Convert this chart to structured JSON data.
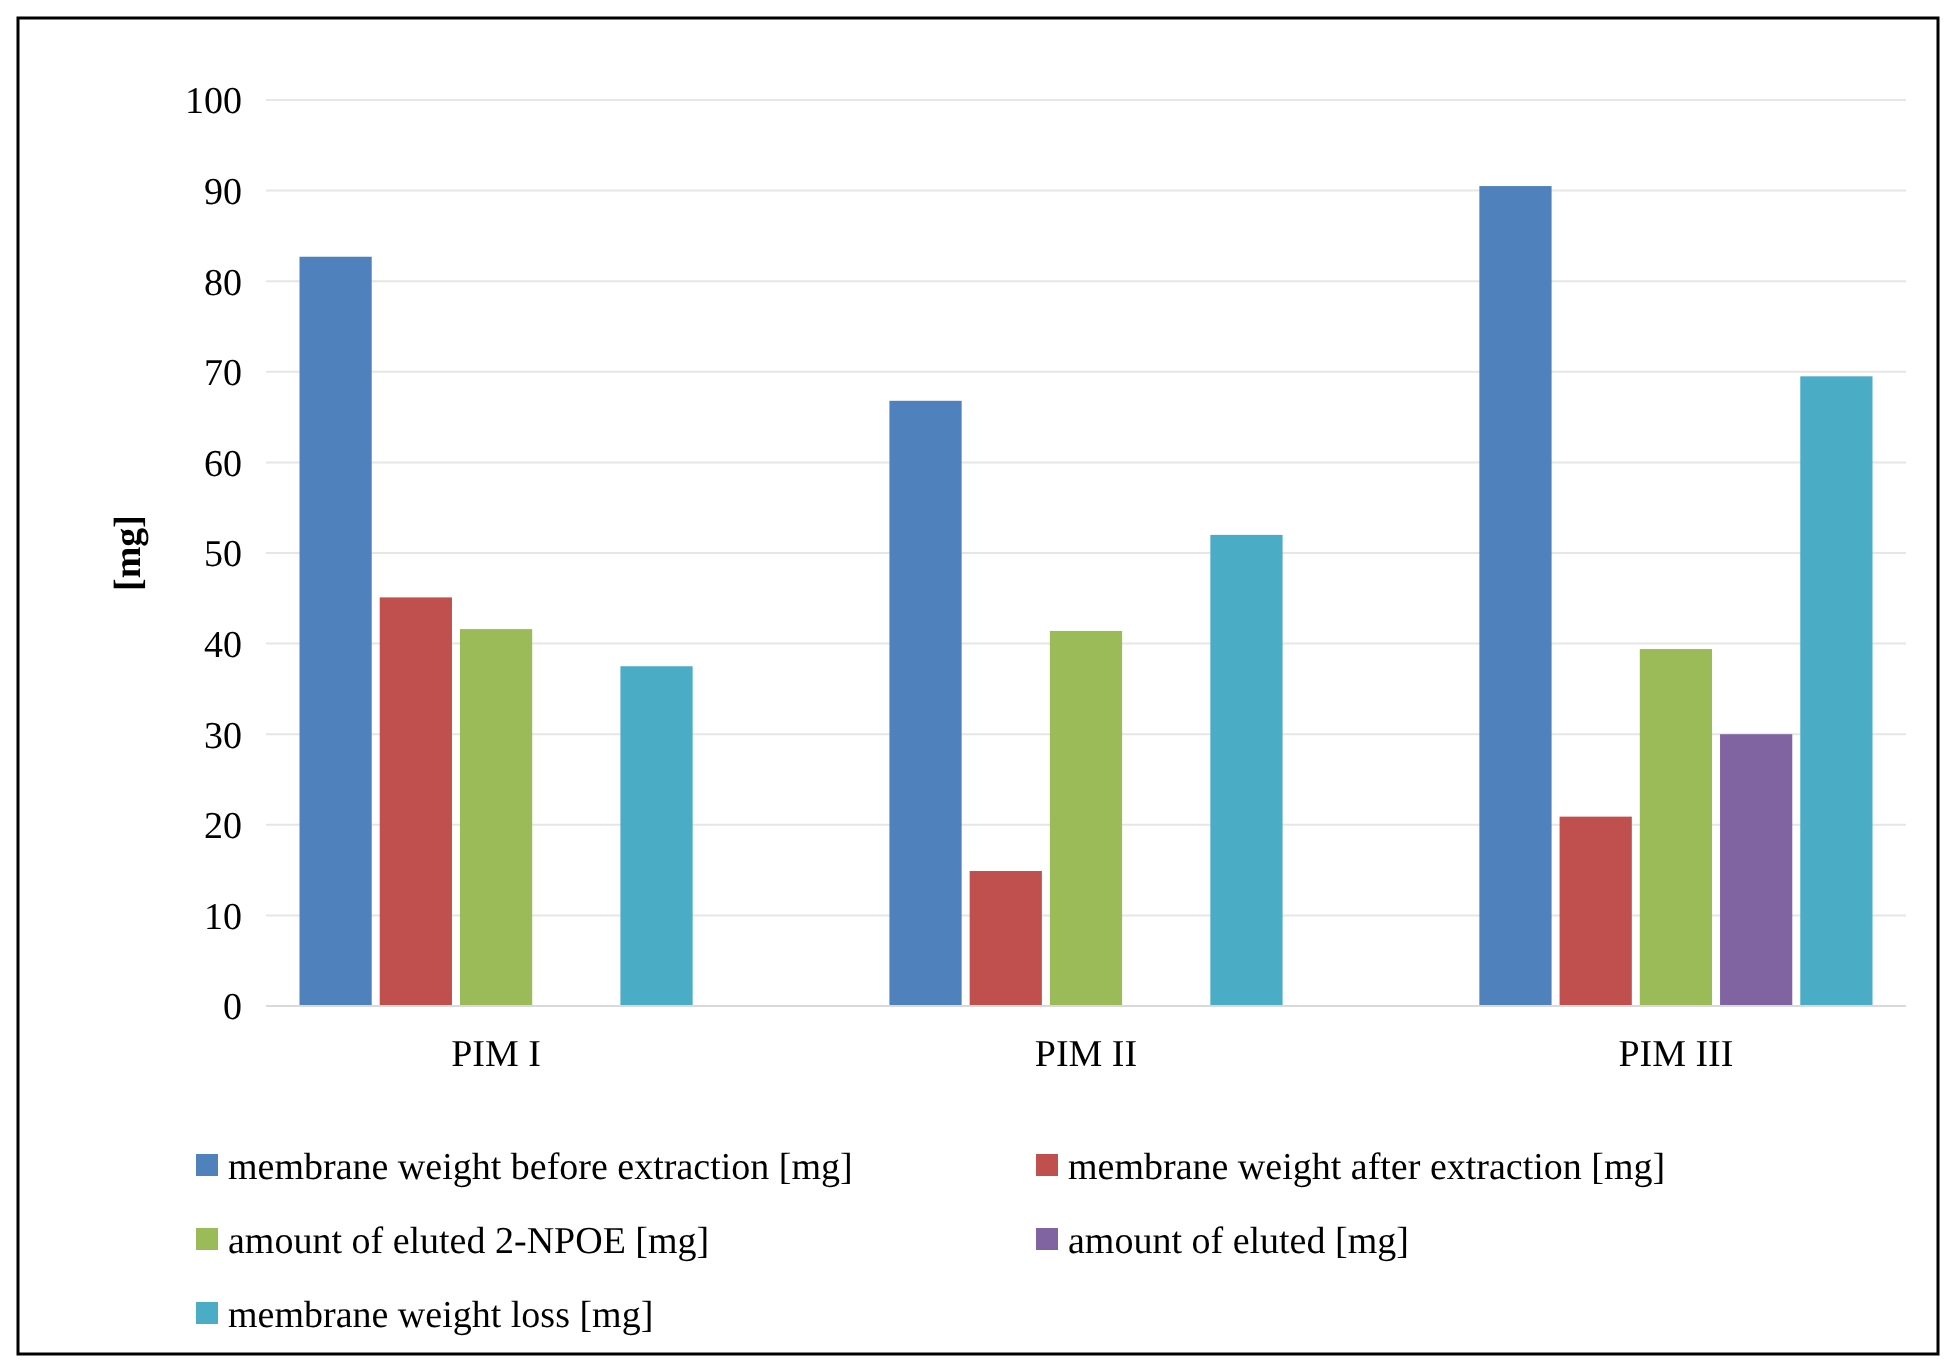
{
  "chart_data": {
    "type": "bar",
    "ylabel": "[mg]",
    "categories": [
      "PIM I",
      "PIM II",
      "PIM III"
    ],
    "series": [
      {
        "name": "membrane weight before extraction [mg]",
        "color": "#4f81bd",
        "values": [
          82.7,
          66.8,
          90.5
        ]
      },
      {
        "name": "membrane weight after extraction [mg]",
        "color": "#c0504d",
        "values": [
          45.1,
          14.9,
          20.9
        ]
      },
      {
        "name": "amount of eluted 2-NPOE [mg]",
        "color": "#9bbb59",
        "values": [
          41.6,
          41.4,
          39.4
        ]
      },
      {
        "name": "amount of eluted [mg]",
        "color": "#8064a2",
        "values": [
          null,
          null,
          30.0
        ]
      },
      {
        "name": "membrane weight loss [mg]",
        "color": "#4bacc6",
        "values": [
          37.5,
          52.0,
          69.5
        ]
      }
    ],
    "ylim": [
      0,
      100
    ],
    "yticks": [
      0,
      10,
      20,
      30,
      40,
      50,
      60,
      70,
      80,
      90,
      100
    ],
    "grid": "y",
    "legend": "bottom"
  }
}
